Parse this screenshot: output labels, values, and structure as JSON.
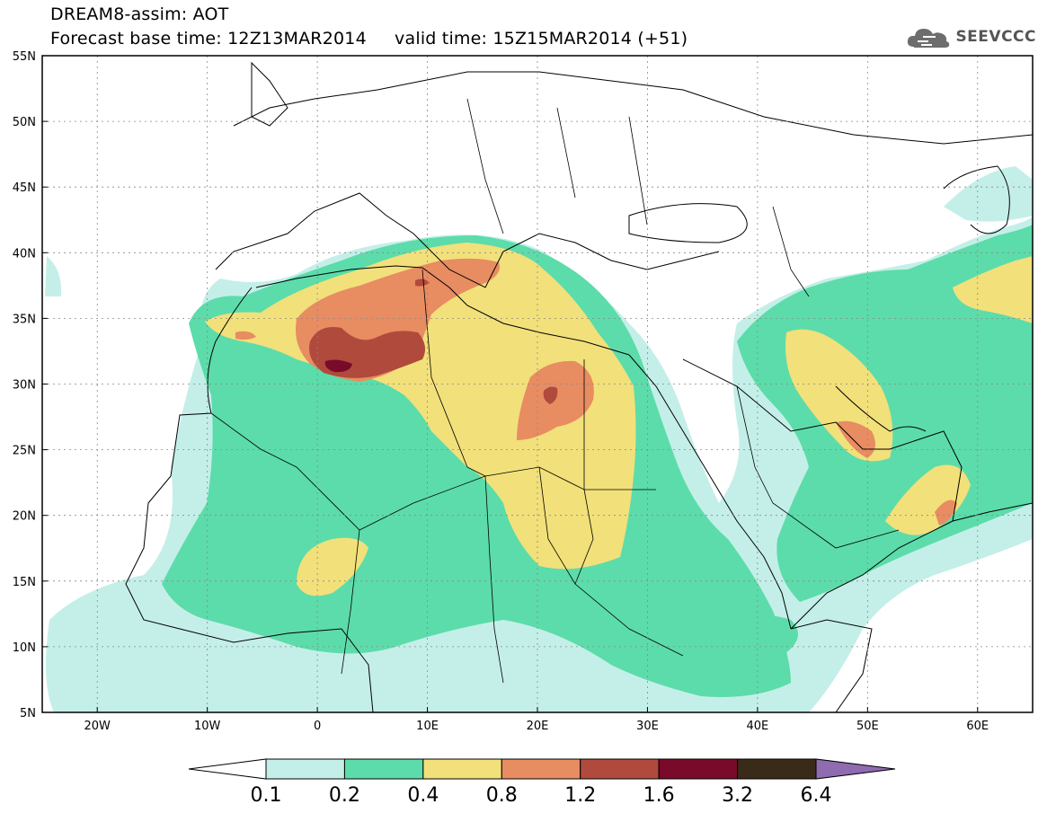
{
  "title": {
    "line1": "DREAM8-assim: AOT",
    "line2": "Forecast base time: 12Z13MAR2014     valid time: 15Z15MAR2014 (+51)"
  },
  "logo": {
    "text": "SEEVCCC",
    "icon": "cloud-icon"
  },
  "map": {
    "lon_range": [
      -25,
      65
    ],
    "lat_range": [
      5,
      55
    ],
    "grid": true,
    "lat_ticks": [
      "55N",
      "50N",
      "45N",
      "40N",
      "35N",
      "30N",
      "25N",
      "20N",
      "15N",
      "10N",
      "5N"
    ],
    "lon_ticks": [
      "20W",
      "10W",
      "0",
      "10E",
      "20E",
      "30E",
      "40E",
      "50E",
      "60E"
    ]
  },
  "colorbar": {
    "labels": [
      "0.1",
      "0.2",
      "0.4",
      "0.8",
      "1.2",
      "1.6",
      "3.2",
      "6.4"
    ],
    "colors": [
      "#c4efe9",
      "#5cdcaa",
      "#f2e07a",
      "#e88c62",
      "#b04a3c",
      "#7a0a2a",
      "#3a2a1a",
      "#8f6bb0"
    ]
  }
}
